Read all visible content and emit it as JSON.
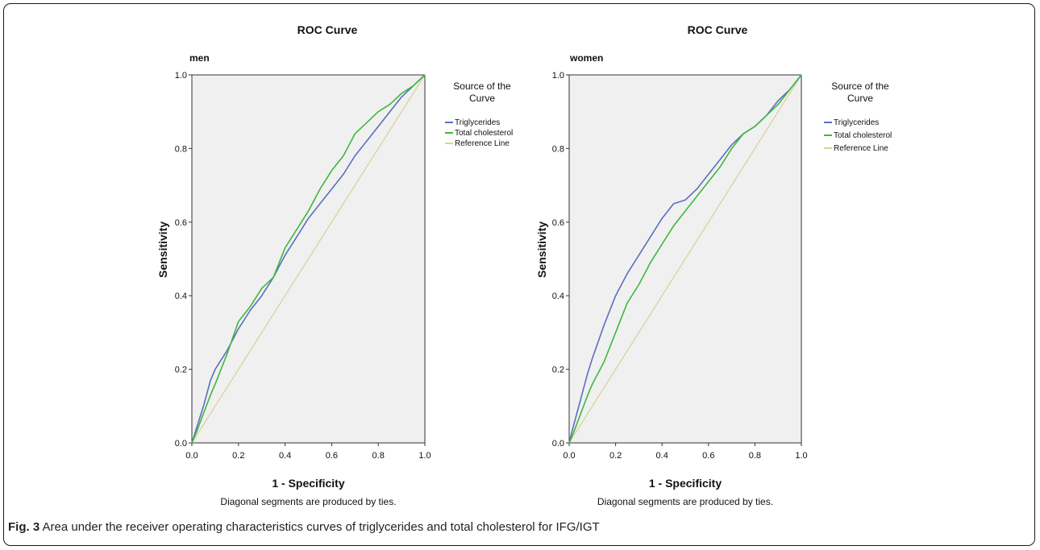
{
  "caption": {
    "label": "Fig. 3",
    "text": " Area under the receiver operating characteristics curves of triglycerides and total cholesterol for IFG/IGT"
  },
  "chart_data": [
    {
      "type": "line",
      "title": "ROC Curve",
      "subtitle": "men",
      "xlabel": "1 - Specificity",
      "ylabel": "Sensitivity",
      "note": "Diagonal segments are produced by ties.",
      "xlim": [
        0,
        1
      ],
      "ylim": [
        0,
        1
      ],
      "xticks": [
        "0.0",
        "0.2",
        "0.4",
        "0.6",
        "0.8",
        "1.0"
      ],
      "yticks": [
        "0.0",
        "0.2",
        "0.4",
        "0.6",
        "0.8",
        "1.0"
      ],
      "legend_title": "Source of the Curve",
      "legend_position": "right",
      "series": [
        {
          "name": "Triglycerides",
          "color": "#5b6fc0",
          "points": [
            [
              0,
              0
            ],
            [
              0.02,
              0.04
            ],
            [
              0.05,
              0.1
            ],
            [
              0.08,
              0.17
            ],
            [
              0.1,
              0.2
            ],
            [
              0.15,
              0.25
            ],
            [
              0.2,
              0.31
            ],
            [
              0.25,
              0.36
            ],
            [
              0.3,
              0.4
            ],
            [
              0.35,
              0.45
            ],
            [
              0.4,
              0.51
            ],
            [
              0.45,
              0.56
            ],
            [
              0.5,
              0.61
            ],
            [
              0.55,
              0.65
            ],
            [
              0.6,
              0.69
            ],
            [
              0.65,
              0.73
            ],
            [
              0.7,
              0.78
            ],
            [
              0.75,
              0.82
            ],
            [
              0.8,
              0.86
            ],
            [
              0.85,
              0.9
            ],
            [
              0.9,
              0.94
            ],
            [
              0.95,
              0.97
            ],
            [
              1,
              1
            ]
          ]
        },
        {
          "name": "Total cholesterol",
          "color": "#3cb93c",
          "points": [
            [
              0,
              0
            ],
            [
              0.02,
              0.03
            ],
            [
              0.05,
              0.08
            ],
            [
              0.08,
              0.13
            ],
            [
              0.1,
              0.16
            ],
            [
              0.15,
              0.24
            ],
            [
              0.2,
              0.33
            ],
            [
              0.25,
              0.37
            ],
            [
              0.3,
              0.42
            ],
            [
              0.35,
              0.45
            ],
            [
              0.4,
              0.53
            ],
            [
              0.45,
              0.58
            ],
            [
              0.5,
              0.63
            ],
            [
              0.55,
              0.69
            ],
            [
              0.6,
              0.74
            ],
            [
              0.65,
              0.78
            ],
            [
              0.7,
              0.84
            ],
            [
              0.75,
              0.87
            ],
            [
              0.8,
              0.9
            ],
            [
              0.85,
              0.92
            ],
            [
              0.9,
              0.95
            ],
            [
              0.95,
              0.97
            ],
            [
              1,
              1
            ]
          ]
        },
        {
          "name": "Reference Line",
          "color": "#d6d4a0",
          "points": [
            [
              0,
              0
            ],
            [
              1,
              1
            ]
          ]
        }
      ]
    },
    {
      "type": "line",
      "title": "ROC Curve",
      "subtitle": "women",
      "xlabel": "1 - Specificity",
      "ylabel": "Sensitivity",
      "note": "Diagonal segments are produced by ties.",
      "xlim": [
        0,
        1
      ],
      "ylim": [
        0,
        1
      ],
      "xticks": [
        "0.0",
        "0.2",
        "0.4",
        "0.6",
        "0.8",
        "1.0"
      ],
      "yticks": [
        "0.0",
        "0.2",
        "0.4",
        "0.6",
        "0.8",
        "1.0"
      ],
      "legend_title": "Source of the Curve",
      "legend_position": "right",
      "series": [
        {
          "name": "Triglycerides",
          "color": "#5b6fc0",
          "points": [
            [
              0,
              0
            ],
            [
              0.02,
              0.05
            ],
            [
              0.05,
              0.12
            ],
            [
              0.08,
              0.19
            ],
            [
              0.1,
              0.23
            ],
            [
              0.15,
              0.32
            ],
            [
              0.2,
              0.4
            ],
            [
              0.25,
              0.46
            ],
            [
              0.3,
              0.51
            ],
            [
              0.35,
              0.56
            ],
            [
              0.4,
              0.61
            ],
            [
              0.45,
              0.65
            ],
            [
              0.5,
              0.66
            ],
            [
              0.55,
              0.69
            ],
            [
              0.6,
              0.73
            ],
            [
              0.65,
              0.77
            ],
            [
              0.7,
              0.81
            ],
            [
              0.75,
              0.84
            ],
            [
              0.8,
              0.86
            ],
            [
              0.85,
              0.89
            ],
            [
              0.9,
              0.93
            ],
            [
              0.95,
              0.96
            ],
            [
              1,
              1
            ]
          ]
        },
        {
          "name": "Total cholesterol",
          "color": "#3cb93c",
          "points": [
            [
              0,
              0
            ],
            [
              0.02,
              0.03
            ],
            [
              0.05,
              0.08
            ],
            [
              0.08,
              0.13
            ],
            [
              0.1,
              0.16
            ],
            [
              0.15,
              0.22
            ],
            [
              0.2,
              0.3
            ],
            [
              0.25,
              0.38
            ],
            [
              0.3,
              0.43
            ],
            [
              0.35,
              0.49
            ],
            [
              0.4,
              0.54
            ],
            [
              0.45,
              0.59
            ],
            [
              0.5,
              0.63
            ],
            [
              0.55,
              0.67
            ],
            [
              0.6,
              0.71
            ],
            [
              0.65,
              0.75
            ],
            [
              0.7,
              0.8
            ],
            [
              0.75,
              0.84
            ],
            [
              0.8,
              0.86
            ],
            [
              0.85,
              0.89
            ],
            [
              0.9,
              0.92
            ],
            [
              0.95,
              0.96
            ],
            [
              1,
              1
            ]
          ]
        },
        {
          "name": "Reference Line",
          "color": "#d6d4a0",
          "points": [
            [
              0,
              0
            ],
            [
              1,
              1
            ]
          ]
        }
      ]
    }
  ]
}
